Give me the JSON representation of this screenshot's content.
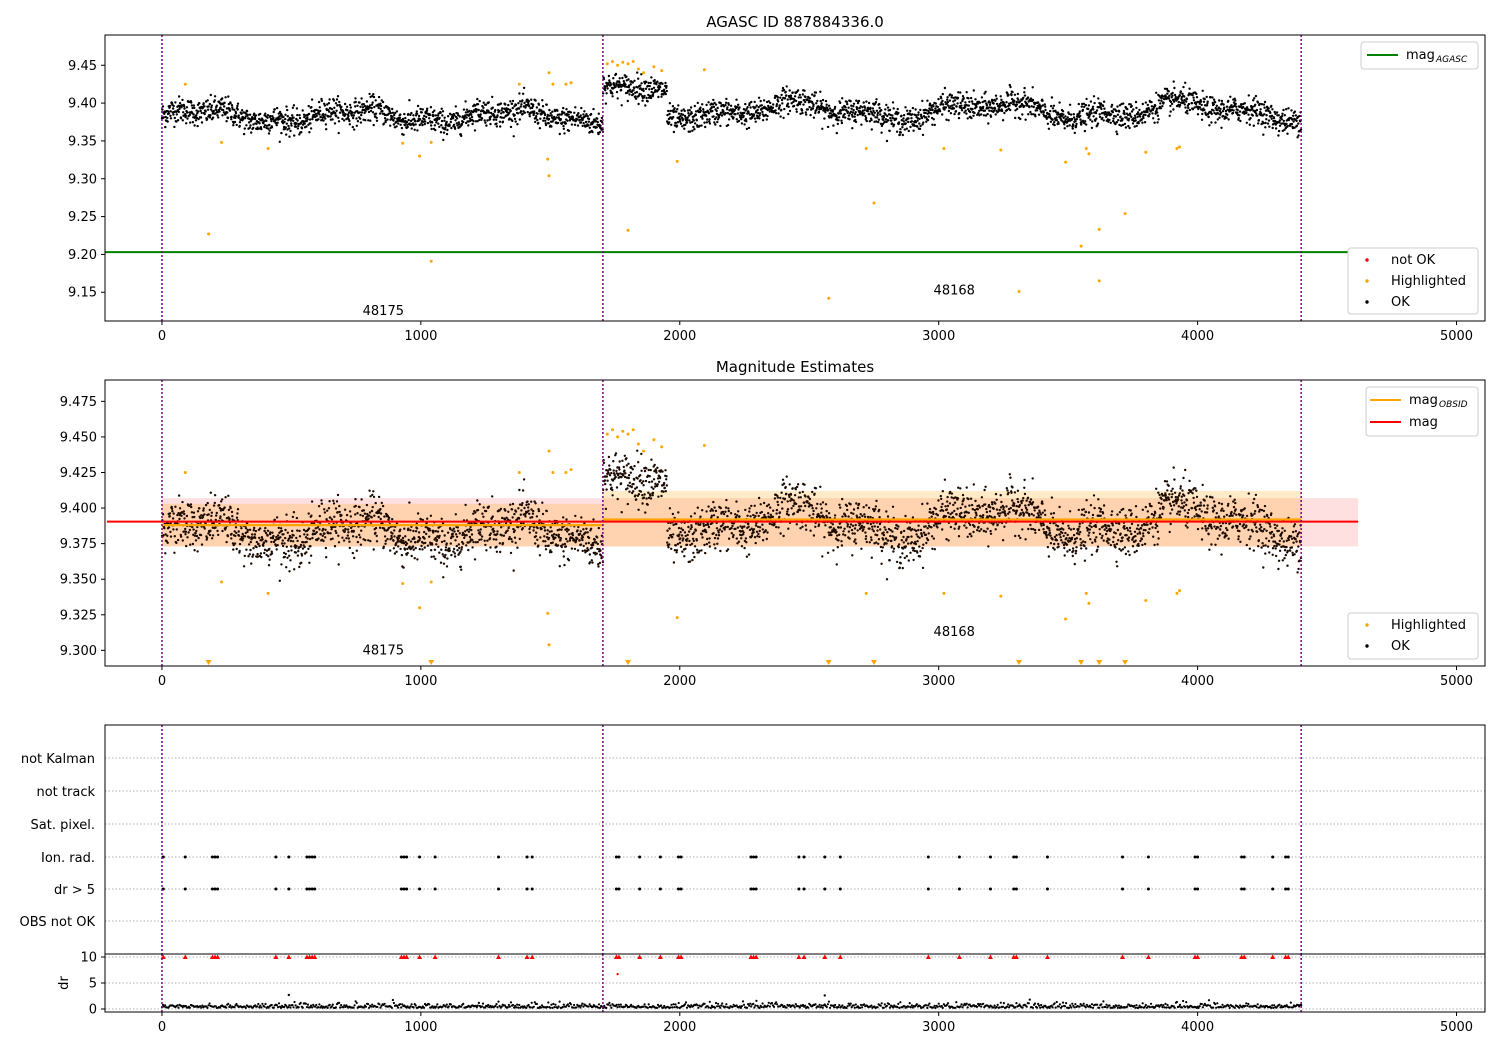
{
  "figure": {
    "panel1": {
      "title": "AGASC ID 887884336.0",
      "xlim": [
        -220,
        5110
      ],
      "ylim": [
        9.112,
        9.49
      ],
      "xticks": [
        0,
        1000,
        2000,
        3000,
        4000,
        5000
      ],
      "yticks": [
        9.15,
        9.2,
        9.25,
        9.3,
        9.35,
        9.4,
        9.45
      ],
      "ytick_labels": [
        "9.15",
        "9.20",
        "9.25",
        "9.30",
        "9.35",
        "9.40",
        "9.45"
      ],
      "mag_agasc": 9.203,
      "obsid_boundaries": [
        0,
        1703,
        4400
      ],
      "obsid_labels": [
        {
          "text": "48175",
          "x": 855,
          "y": 9.125
        },
        {
          "text": "48168",
          "x": 3060,
          "y": 9.152
        }
      ],
      "legend_upper": {
        "main": "mag",
        "sub": "AGASC"
      },
      "legend_lower": [
        "not OK",
        "Highlighted",
        "OK"
      ]
    },
    "panel2": {
      "title": "Magnitude Estimates",
      "xlim": [
        -220,
        5110
      ],
      "ylim": [
        9.289,
        9.49
      ],
      "xticks": [
        0,
        1000,
        2000,
        3000,
        4000,
        5000
      ],
      "yticks": [
        9.3,
        9.325,
        9.35,
        9.375,
        9.4,
        9.425,
        9.45,
        9.475
      ],
      "ytick_labels": [
        "9.300",
        "9.325",
        "9.350",
        "9.375",
        "9.400",
        "9.425",
        "9.450",
        "9.475"
      ],
      "mag": 9.3905,
      "mag_band": [
        9.373,
        9.407
      ],
      "mag_obsid": [
        {
          "x0": 0,
          "x1": 1703,
          "value": 9.388,
          "band": [
            9.373,
            9.403
          ]
        },
        {
          "x0": 1703,
          "x1": 4400,
          "value": 9.392,
          "band": [
            9.373,
            9.412
          ]
        }
      ],
      "obsid_labels": [
        {
          "text": "48175",
          "x": 855,
          "y": 9.3
        }
      ],
      "obsid_labels_b": [
        {
          "text": "48168",
          "x": 3060,
          "y": 9.313
        }
      ],
      "legend_upper": [
        {
          "main": "mag",
          "sub": "OBSID"
        },
        {
          "main": "mag",
          "sub": ""
        }
      ],
      "legend_lower": [
        "Highlighted",
        "OK"
      ]
    },
    "panel3": {
      "flag_labels": [
        "not Kalman",
        "not track",
        "Sat. pixel.",
        "Ion. rad.",
        "dr > 5",
        "OBS not OK"
      ],
      "xticks": [
        0,
        1000,
        2000,
        3000,
        4000,
        5000
      ]
    },
    "panel4": {
      "ylabel": "dr",
      "yticks": [
        0,
        5,
        10
      ],
      "xticks": [
        0,
        1000,
        2000,
        3000,
        4000,
        5000
      ]
    },
    "colors": {
      "ok": "#000000",
      "highlighted": "#ffa500",
      "not_ok": "#ff0000",
      "agasc_line": "#008000",
      "mag_line": "#ff0000",
      "obsid_line": "#ffa500",
      "boundary": "#800080"
    }
  },
  "chart_data": [
    {
      "type": "scatter",
      "title": "AGASC ID 887884336.0",
      "xlim": [
        -220,
        5110
      ],
      "ylim": [
        9.112,
        9.49
      ],
      "reference_lines": [
        {
          "name": "mag_AGASC",
          "y": 9.203
        }
      ],
      "series": [
        {
          "name": "OK",
          "description_level": [
            {
              "x": [
                0,
                1703
              ],
              "mean": 9.385
            },
            {
              "x": [
                1703,
                1950
              ],
              "mean": 9.42
            },
            {
              "x": [
                1950,
                4400
              ],
              "mean": 9.39
            }
          ]
        },
        {
          "name": "Highlighted",
          "points": [
            [
              90,
              9.425
            ],
            [
              180,
              9.227
            ],
            [
              230,
              9.348
            ],
            [
              410,
              9.34
            ],
            [
              930,
              9.347
            ],
            [
              995,
              9.33
            ],
            [
              1040,
              9.191
            ],
            [
              1040,
              9.348
            ],
            [
              1380,
              9.425
            ],
            [
              1490,
              9.326
            ],
            [
              1495,
              9.304
            ],
            [
              1495,
              9.44
            ],
            [
              1510,
              9.425
            ],
            [
              1560,
              9.425
            ],
            [
              1580,
              9.427
            ],
            [
              1720,
              9.452
            ],
            [
              1740,
              9.455
            ],
            [
              1760,
              9.45
            ],
            [
              1780,
              9.454
            ],
            [
              1800,
              9.452
            ],
            [
              1820,
              9.455
            ],
            [
              1840,
              9.445
            ],
            [
              1860,
              9.44
            ],
            [
              1900,
              9.448
            ],
            [
              1930,
              9.443
            ],
            [
              1800,
              9.232
            ],
            [
              1990,
              9.323
            ],
            [
              2095,
              9.444
            ],
            [
              2575,
              9.142
            ],
            [
              2720,
              9.34
            ],
            [
              2750,
              9.268
            ],
            [
              3020,
              9.34
            ],
            [
              3240,
              9.338
            ],
            [
              3310,
              9.151
            ],
            [
              3490,
              9.322
            ],
            [
              3550,
              9.211
            ],
            [
              3570,
              9.34
            ],
            [
              3580,
              9.333
            ],
            [
              3620,
              9.165
            ],
            [
              3620,
              9.233
            ],
            [
              3720,
              9.254
            ],
            [
              3800,
              9.335
            ],
            [
              3920,
              9.34
            ],
            [
              3930,
              9.342
            ]
          ]
        }
      ]
    },
    {
      "type": "scatter",
      "title": "Magnitude Estimates",
      "xlim": [
        -220,
        5110
      ],
      "ylim": [
        9.289,
        9.49
      ],
      "reference_lines": [
        {
          "name": "mag",
          "y": 9.3905,
          "band": [
            9.373,
            9.407
          ]
        }
      ]
    },
    {
      "type": "scatter",
      "flags": [
        "not Kalman",
        "not track",
        "Sat. pixel.",
        "Ion. rad.",
        "dr > 5",
        "OBS not OK"
      ],
      "flag_times_ion_rad_dr5": [
        5,
        90,
        195,
        205,
        215,
        440,
        490,
        560,
        570,
        580,
        590,
        925,
        935,
        945,
        995,
        1055,
        1300,
        1410,
        1430,
        1755,
        1765,
        1845,
        1925,
        1995,
        2005,
        2275,
        2285,
        2295,
        2460,
        2480,
        2560,
        2620,
        2960,
        3080,
        3200,
        3290,
        3300,
        3420,
        3710,
        3810,
        3990,
        4000,
        4170,
        4180,
        4290,
        4340,
        4350
      ]
    },
    {
      "type": "scatter",
      "ylabel": "dr",
      "yticks": [
        0,
        5,
        10
      ],
      "notes": "dr values mostly ~0-1; clipped points at 10 in red"
    }
  ]
}
